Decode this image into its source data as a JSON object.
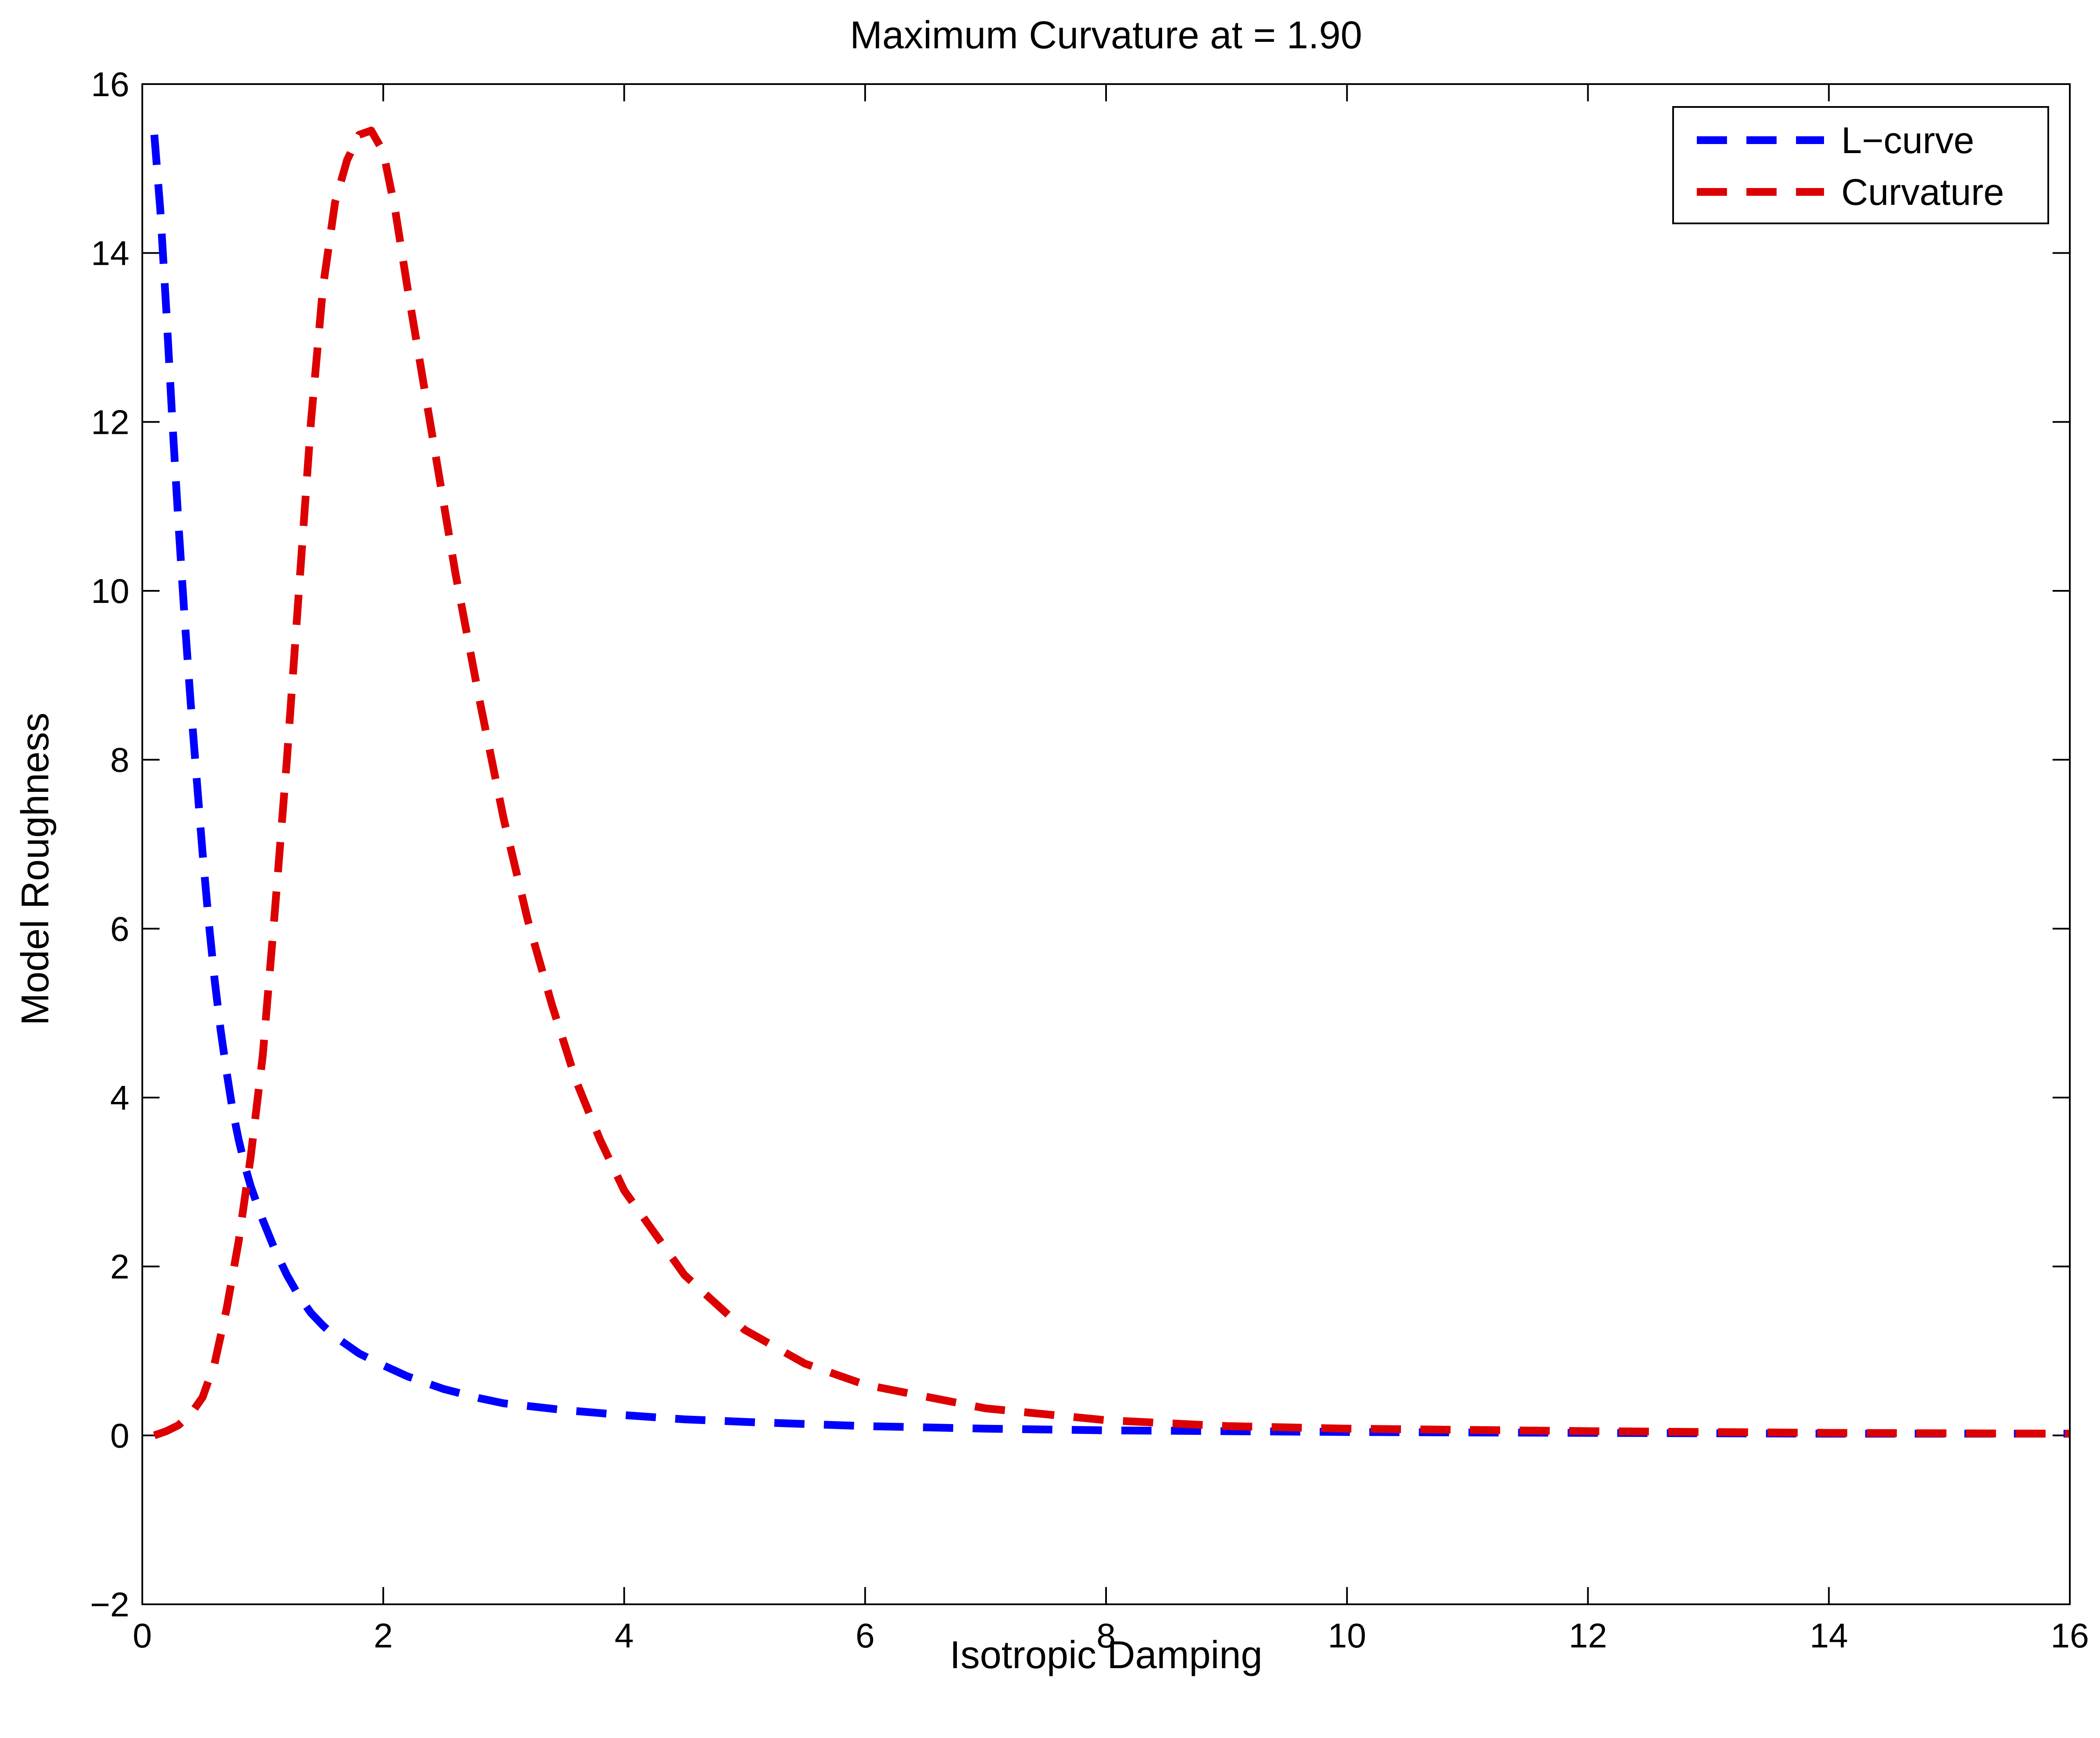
{
  "chart_data": {
    "type": "line",
    "title": "Maximum Curvature at = 1.90",
    "xlabel": "Isotropic Damping",
    "ylabel": "Model Roughness",
    "xlim": [
      0,
      16
    ],
    "ylim": [
      -2,
      16
    ],
    "xticks": [
      "0",
      "2",
      "4",
      "6",
      "8",
      "10",
      "12",
      "14",
      "16"
    ],
    "yticks": [
      "−2",
      "0",
      "2",
      "4",
      "6",
      "8",
      "10",
      "12",
      "14",
      "16"
    ],
    "legend_position": "top-right",
    "series": [
      {
        "name": "L−curve",
        "color": "#0000ff",
        "style": "dashed",
        "x": [
          0.1,
          0.15,
          0.2,
          0.25,
          0.3,
          0.35,
          0.4,
          0.45,
          0.5,
          0.55,
          0.6,
          0.65,
          0.7,
          0.75,
          0.8,
          0.85,
          0.9,
          0.95,
          1.0,
          1.1,
          1.2,
          1.3,
          1.4,
          1.5,
          1.6,
          1.8,
          2.0,
          2.2,
          2.5,
          2.8,
          3.0,
          3.5,
          4.0,
          4.5,
          5.0,
          6.0,
          7.0,
          8.0,
          10.0,
          12.0,
          14.0,
          16.0
        ],
        "y": [
          15.4,
          14.5,
          13.3,
          12.0,
          10.8,
          9.7,
          8.7,
          7.8,
          6.9,
          6.1,
          5.4,
          4.8,
          4.3,
          3.85,
          3.5,
          3.2,
          2.95,
          2.75,
          2.55,
          2.2,
          1.9,
          1.65,
          1.45,
          1.3,
          1.17,
          0.97,
          0.83,
          0.7,
          0.55,
          0.44,
          0.38,
          0.3,
          0.24,
          0.19,
          0.16,
          0.11,
          0.08,
          0.06,
          0.04,
          0.03,
          0.02,
          0.02
        ]
      },
      {
        "name": "Curvature",
        "color": "#dd0000",
        "style": "dashed",
        "x": [
          0.1,
          0.2,
          0.3,
          0.4,
          0.5,
          0.6,
          0.7,
          0.8,
          0.9,
          1.0,
          1.1,
          1.2,
          1.3,
          1.4,
          1.5,
          1.6,
          1.7,
          1.8,
          1.9,
          2.0,
          2.1,
          2.2,
          2.4,
          2.6,
          2.8,
          3.0,
          3.2,
          3.4,
          3.6,
          3.8,
          4.0,
          4.5,
          5.0,
          5.5,
          6.0,
          7.0,
          8.0,
          9.0,
          10.0,
          12.0,
          14.0,
          16.0
        ],
        "y": [
          0.0,
          0.05,
          0.12,
          0.25,
          0.45,
          0.85,
          1.5,
          2.3,
          3.3,
          4.5,
          6.2,
          8.0,
          10.0,
          12.0,
          13.6,
          14.6,
          15.1,
          15.4,
          15.45,
          15.2,
          14.5,
          13.6,
          11.9,
          10.2,
          8.7,
          7.3,
          6.1,
          5.1,
          4.2,
          3.5,
          2.9,
          1.9,
          1.25,
          0.85,
          0.6,
          0.32,
          0.18,
          0.11,
          0.08,
          0.05,
          0.03,
          0.02
        ]
      }
    ]
  }
}
